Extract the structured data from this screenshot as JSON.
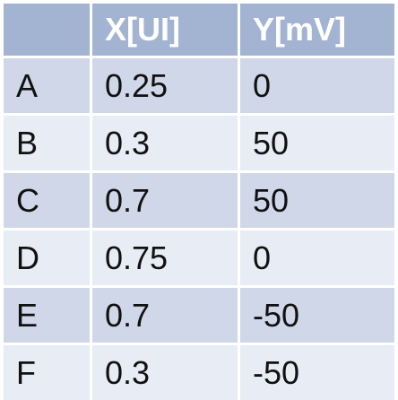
{
  "table": {
    "headers": [
      "",
      "X[UI]",
      "Y[mV]"
    ],
    "rows": [
      [
        "A",
        "0.25",
        "0"
      ],
      [
        "B",
        "0.3",
        "50"
      ],
      [
        "C",
        "0.7",
        "50"
      ],
      [
        "D",
        "0.75",
        "0"
      ],
      [
        "E",
        "0.7",
        "-50"
      ],
      [
        "F",
        "0.3",
        "-50"
      ]
    ]
  },
  "colors": {
    "header_bg": "#a3b3d2",
    "row_odd_bg": "#d0d7e8",
    "row_even_bg": "#e8ecf4",
    "header_text": "#ffffff"
  }
}
